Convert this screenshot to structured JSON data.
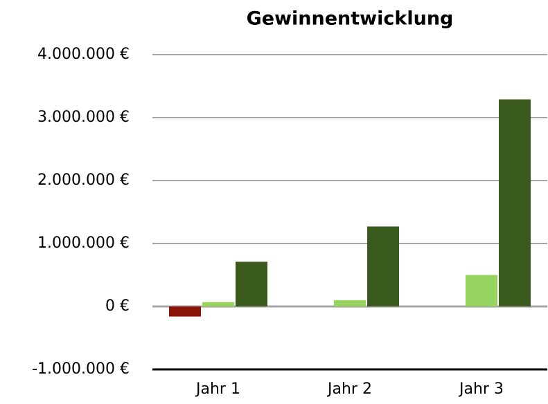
{
  "chart_data": {
    "type": "bar",
    "title": "Gewinnentwicklung",
    "categories": [
      "Jahr 1",
      "Jahr 2",
      "Jahr 3"
    ],
    "series": [
      {
        "color": "#8b1408",
        "values": [
          -160000,
          null,
          null
        ]
      },
      {
        "color": "#96d45f",
        "values": [
          70000,
          100000,
          500000
        ]
      },
      {
        "color": "#3a5a1d",
        "values": [
          710000,
          1270000,
          3290000
        ]
      }
    ],
    "ylim": [
      -1000000,
      4000000
    ],
    "yticks": [
      {
        "value": -1000000,
        "label": "-1.000.000 €"
      },
      {
        "value": 0,
        "label": "0 €"
      },
      {
        "value": 1000000,
        "label": "1.000.000 €"
      },
      {
        "value": 2000000,
        "label": "2.000.000 €"
      },
      {
        "value": 3000000,
        "label": "3.000.000 €"
      },
      {
        "value": 4000000,
        "label": "4.000.000 €"
      }
    ],
    "grid": true
  }
}
